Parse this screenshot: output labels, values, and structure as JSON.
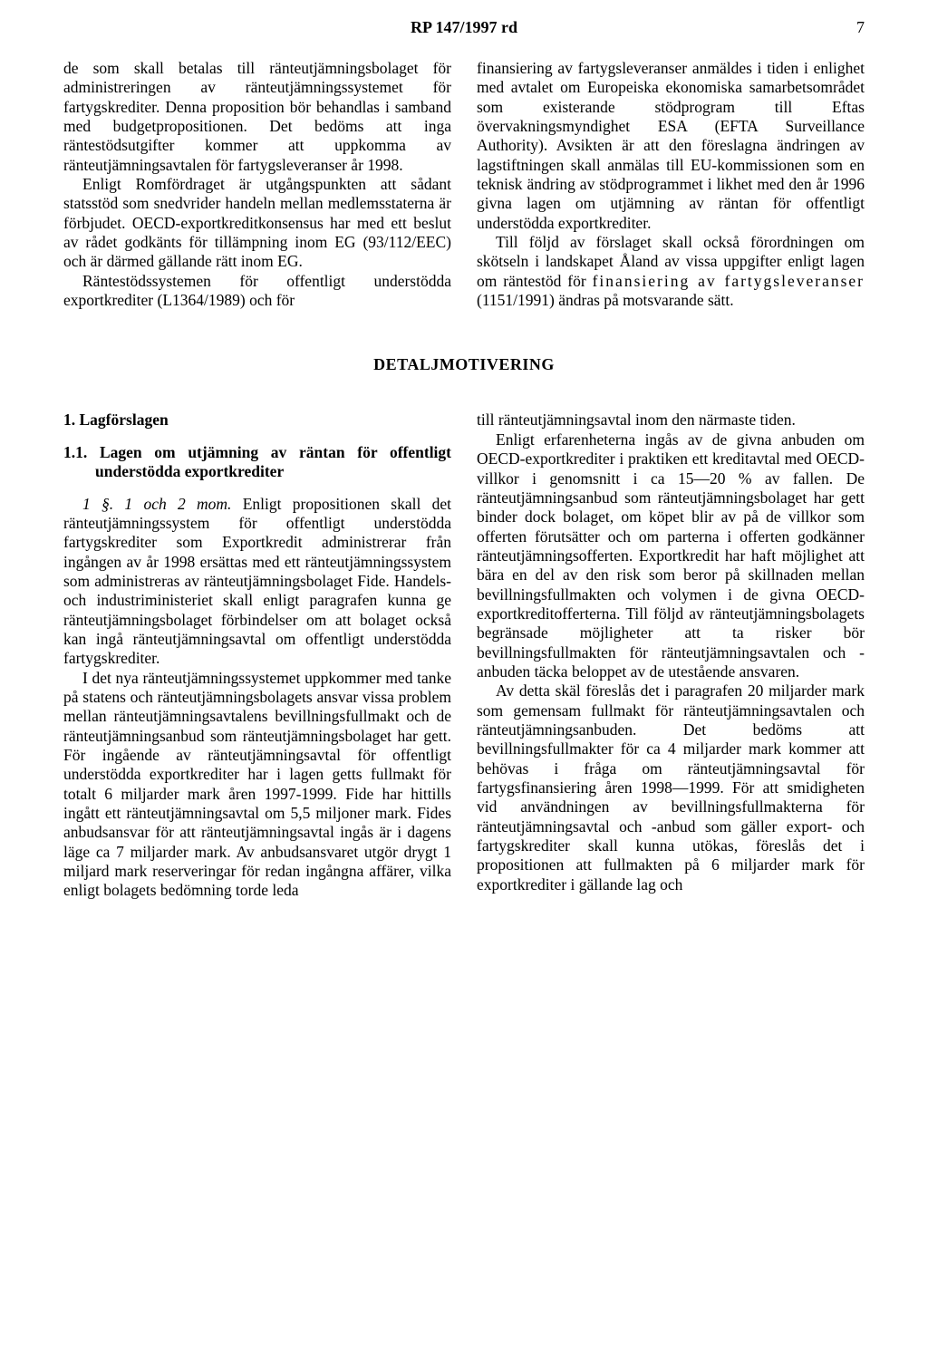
{
  "header": {
    "doc_ref": "RP 147/1997 rd",
    "page_number": "7"
  },
  "top": {
    "left": {
      "p1": "de som skall betalas till ränteutjämningsbolaget för administreringen av ränteutjämningssystemet för fartygskrediter. Denna proposition bör behandlas i samband med budgetpropositionen. Det bedöms att inga räntestödsutgifter kommer att uppkomma av ränteutjämningsavtalen för fartygsleveranser år 1998.",
      "p2": "Enligt Romfördraget är utgångspunkten att sådant statsstöd som snedvrider handeln mellan medlemsstaterna är förbjudet. OECD-exportkreditkonsensus har med ett beslut av rådet godkänts för tillämpning inom EG (93/112/EEC) och är därmed gällande rätt inom EG.",
      "p3": "Räntestödssystemen för offentligt understödda exportkrediter (L1364/1989) och för"
    },
    "right": {
      "p1a": "finansiering av fartygsleveranser anmäldes i tiden i enlighet med avtalet om Europeiska ekonomiska samarbetsområdet som existerande stödprogram till Eftas övervakningsmyndighet ESA (EFTA Surveillance Authority). Avsikten är att den föreslagna ändringen av lagstiftningen skall anmälas till EU-kommissionen som en teknisk ändring av stödprogrammet i likhet med den år 1996 givna lagen om utjämning av räntan för offentligt understödda exportkrediter.",
      "p2a": "Till följd av förslaget skall också förordningen om skötseln i landskapet Åland av vissa uppgifter enligt lagen om räntestöd för ",
      "p2b": "finansiering av fartygsleveranser",
      "p2c": " (1151/1991) ändras på motsvarande sätt."
    }
  },
  "section_heading": "DETALJMOTIVERING",
  "bottom": {
    "left": {
      "h1": "1.   Lagförslagen",
      "h11": "1.1. Lagen om utjämning av räntan för offentligt understödda exportkrediter",
      "p1_lead": "1 §. 1 och 2 mom.",
      "p1": " Enligt propositionen skall det ränteutjämningssystem för offentligt understödda fartygskrediter som Exportkredit administrerar från ingången av år 1998 ersättas med ett ränteutjämningssystem som administreras av ränteutjämningsbolaget Fide. Handels- och industriministeriet skall enligt paragrafen kunna ge ränteutjämningsbolaget förbindelser om att bolaget också kan ingå ränteutjämningsavtal om offentligt understödda fartygskrediter.",
      "p2": "I det nya ränteutjämningssystemet uppkommer med tanke på statens och ränteutjämningsbolagets ansvar vissa problem mellan ränteutjämningsavtalens bevillningsfullmakt och de ränteutjämningsanbud som ränteutjämningsbolaget har gett. För ingående av ränteutjämningsavtal för offentligt understödda exportkrediter har i lagen getts fullmakt för totalt 6 miljarder mark åren 1997-1999. Fide har hittills ingått ett ränteutjämningsavtal om 5,5 miljoner mark. Fides anbudsansvar för att ränteutjämningsavtal ingås är i dagens läge ca 7 miljarder mark. Av anbudsansvaret utgör drygt 1 miljard mark reserveringar för redan ingångna affärer, vilka enligt bolagets bedömning torde leda"
    },
    "right": {
      "p1": "till ränteutjämningsavtal inom den närmaste tiden.",
      "p2": "Enligt erfarenheterna ingås av de givna anbuden om OECD-exportkrediter i praktiken ett kreditavtal med OECD-villkor i genomsnitt i ca 15—20 % av fallen. De ränteutjämningsanbud som ränteutjämningsbolaget har gett binder dock bolaget, om köpet blir av på de villkor som offerten förutsätter och om parterna i offerten godkänner ränteutjämningsofferten. Exportkredit har haft möjlighet att bära en del av den risk som beror på skillnaden mellan bevillningsfullmakten och volymen i de givna OECD-exportkreditofferterna. Till följd av ränteutjämningsbolagets begränsade möjligheter att ta risker bör bevillningsfullmakten för ränteutjämningsavtalen och -anbuden täcka beloppet av de utestående ansvaren.",
      "p3": "Av detta skäl föreslås det i paragrafen 20 miljarder mark som gemensam fullmakt för ränteutjämningsavtalen och ränteutjämningsanbuden. Det bedöms att bevillningsfullmakter för ca 4 miljarder mark kommer att behövas i fråga om ränteutjämningsavtal för fartygsfinansiering åren 1998—1999. För att smidigheten vid användningen av bevillningsfullmakterna för ränteutjämningsavtal och -anbud som gäller export- och fartygskrediter skall kunna utökas, föreslås det i propositionen att fullmakten på 6 miljarder mark för exportkrediter i gällande lag och"
    }
  }
}
